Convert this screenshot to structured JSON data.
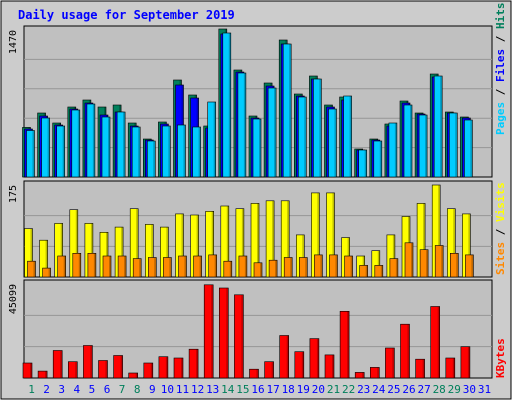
{
  "title": "Daily usage for September 2019",
  "colors": {
    "background": "#ffffff",
    "frame": "#cccccc",
    "panel": "#c0c0c0",
    "gridline": "#969696",
    "title": "#0000ff",
    "day_label_weekday": "#0000ff",
    "day_label_weekend": "#00805c",
    "hits": "#00805c",
    "files": "#0000ff",
    "pages": "#00ccff",
    "visits": "#ffff00",
    "sites": "#ff8800",
    "kbytes": "#ff0000"
  },
  "legends": {
    "top": [
      {
        "text": "Pages",
        "color": "#00ccff"
      },
      {
        "text": " / ",
        "color": "#000000"
      },
      {
        "text": "Files",
        "color": "#0000ff"
      },
      {
        "text": " / ",
        "color": "#000000"
      },
      {
        "text": "Hits",
        "color": "#00805c"
      }
    ],
    "middle": [
      {
        "text": "Sites",
        "color": "#ff8800"
      },
      {
        "text": " / ",
        "color": "#000000"
      },
      {
        "text": "Visits",
        "color": "#ffff00"
      }
    ],
    "bottom": [
      {
        "text": "KBytes",
        "color": "#ff0000"
      }
    ]
  },
  "chart_data": {
    "type": "bar",
    "title": "Daily usage for September 2019",
    "categories": [
      "1",
      "2",
      "3",
      "4",
      "5",
      "6",
      "7",
      "8",
      "9",
      "10",
      "11",
      "12",
      "13",
      "14",
      "15",
      "16",
      "17",
      "18",
      "19",
      "20",
      "21",
      "22",
      "23",
      "24",
      "25",
      "26",
      "27",
      "28",
      "29",
      "30",
      "31"
    ],
    "weekend_days": [
      "1",
      "7",
      "8",
      "14",
      "15",
      "21",
      "22",
      "28",
      "29"
    ],
    "grid": true,
    "panels": [
      {
        "name": "hits-files-pages",
        "ymax_label": "1470",
        "ymax": 1470,
        "series": [
          {
            "name": "Hits",
            "color": "#00805c",
            "values": [
              496,
              640,
              540,
              700,
              770,
              700,
              720,
              540,
              380,
              550,
              970,
              820,
              510,
              1480,
              1070,
              610,
              940,
              1370,
              830,
              1010,
              720,
              800,
              280,
              380,
              530,
              760,
              640,
              1030,
              650,
              600,
              null
            ]
          },
          {
            "name": "Files",
            "color": "#0000ff",
            "values": [
              480,
              610,
              520,
              680,
              740,
              620,
              650,
              510,
              370,
              530,
              920,
              790,
              490,
              1430,
              1050,
              590,
              910,
              1330,
              810,
              980,
              700,
              770,
              270,
              370,
              510,
              740,
              630,
              1000,
              640,
              590,
              null
            ]
          },
          {
            "name": "Pages",
            "color": "#00ccff",
            "values": [
              465,
              590,
              510,
              670,
              730,
              600,
              650,
              500,
              360,
              510,
              520,
              500,
              750,
              1440,
              1040,
              580,
              890,
              1330,
              800,
              980,
              680,
              810,
              270,
              360,
              540,
              720,
              620,
              1010,
              640,
              570,
              null
            ]
          }
        ]
      },
      {
        "name": "visits-sites",
        "ymax_label": "175",
        "ymax": 175,
        "series": [
          {
            "name": "Visits",
            "color": "#ffff00",
            "values": [
              92,
              70,
              102,
              128,
              102,
              85,
              95,
              130,
              100,
              95,
              120,
              118,
              125,
              135,
              130,
              140,
              145,
              145,
              80,
              160,
              160,
              75,
              40,
              50,
              80,
              115,
              140,
              175,
              130,
              120,
              null
            ]
          },
          {
            "name": "Sites",
            "color": "#ff8800",
            "values": [
              30,
              17,
              40,
              45,
              45,
              40,
              40,
              35,
              37,
              37,
              40,
              40,
              42,
              30,
              40,
              27,
              32,
              37,
              37,
              42,
              42,
              40,
              22,
              22,
              35,
              65,
              52,
              60,
              45,
              42,
              null
            ]
          }
        ]
      },
      {
        "name": "kbytes",
        "ymax_label": "45099",
        "ymax": 45099,
        "series": [
          {
            "name": "KBytes",
            "color": "#ff0000",
            "values": [
              7200,
              3300,
              13200,
              7800,
              15600,
              8400,
              10800,
              2400,
              7200,
              10200,
              9600,
              13800,
              44700,
              43200,
              39900,
              4200,
              7800,
              20400,
              12600,
              18900,
              11100,
              32000,
              2700,
              5100,
              14400,
              25800,
              9000,
              34300,
              9600,
              15000,
              null
            ]
          }
        ]
      }
    ]
  }
}
